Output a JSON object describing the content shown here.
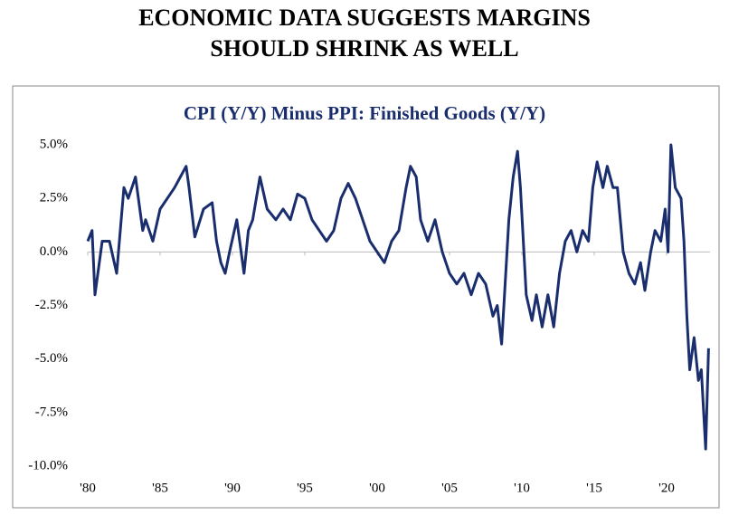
{
  "heading": [
    "ECONOMIC DATA SUGGESTS MARGINS",
    "SHOULD SHRINK AS WELL"
  ],
  "chart_data": {
    "type": "line",
    "title": "CPI (Y/Y) Minus PPI: Finished Goods (Y/Y)",
    "color": "#1a2e6e",
    "x": [
      1980,
      1980.3,
      1980.5,
      1981,
      1981.5,
      1982,
      1982.5,
      1982.8,
      1983.3,
      1983.8,
      1984,
      1984.5,
      1985,
      1985.5,
      1986,
      1986.4,
      1986.8,
      1987,
      1987.4,
      1988,
      1988.6,
      1988.9,
      1989.2,
      1989.5,
      1989.8,
      1990.3,
      1990.5,
      1990.8,
      1991.1,
      1991.4,
      1991.9,
      1992.4,
      1993,
      1993.5,
      1994,
      1994.5,
      1995,
      1995.5,
      1996,
      1996.5,
      1997,
      1997.5,
      1998,
      1998.5,
      1999,
      1999.5,
      2000,
      2000.5,
      2001,
      2001.5,
      2002,
      2002.3,
      2002.7,
      2003,
      2003.5,
      2004,
      2004.5,
      2005,
      2005.5,
      2006,
      2006.5,
      2007,
      2007.5,
      2008,
      2008.3,
      2008.6,
      2008.8,
      2009.1,
      2009.4,
      2009.7,
      2009.9,
      2010.3,
      2010.7,
      2011,
      2011.4,
      2011.8,
      2012.2,
      2012.6,
      2013,
      2013.4,
      2013.8,
      2014.2,
      2014.6,
      2014.9,
      2015.2,
      2015.6,
      2015.9,
      2016.3,
      2016.6,
      2017,
      2017.4,
      2017.8,
      2018.2,
      2018.5,
      2018.9,
      2019.2,
      2019.6,
      2019.9,
      2020.1,
      2020.3,
      2020.6,
      2021,
      2021.2,
      2021.4,
      2021.6,
      2021.9,
      2022.2,
      2022.4,
      2022.7,
      2022.9
    ],
    "values": [
      0.5,
      1.0,
      -2.0,
      0.5,
      0.5,
      -1.0,
      3.0,
      2.5,
      3.5,
      1.0,
      1.5,
      0.5,
      2.0,
      2.5,
      3.0,
      3.5,
      4.0,
      3.0,
      0.7,
      2.0,
      2.3,
      0.5,
      -0.5,
      -1.0,
      0.0,
      1.5,
      0.5,
      -1.0,
      1.0,
      1.5,
      3.5,
      2.0,
      1.5,
      2.0,
      1.5,
      2.7,
      2.5,
      1.5,
      1.0,
      0.5,
      1.0,
      2.5,
      3.2,
      2.5,
      1.5,
      0.5,
      0.0,
      -0.5,
      0.5,
      1.0,
      3.0,
      4.0,
      3.5,
      1.5,
      0.5,
      1.5,
      0.0,
      -1.0,
      -1.5,
      -1.0,
      -2.0,
      -1.0,
      -1.5,
      -3.0,
      -2.5,
      -4.3,
      -2.0,
      1.5,
      3.5,
      4.7,
      3.0,
      -2.0,
      -3.2,
      -2.0,
      -3.5,
      -2.0,
      -3.5,
      -1.0,
      0.5,
      1.0,
      0.0,
      1.0,
      0.5,
      3.0,
      4.2,
      3.0,
      4.0,
      3.0,
      3.0,
      0.0,
      -1.0,
      -1.5,
      -0.5,
      -1.8,
      0.0,
      1.0,
      0.5,
      2.0,
      0.0,
      5.0,
      3.0,
      2.5,
      0.5,
      -3.0,
      -5.5,
      -4.0,
      -6.0,
      -5.5,
      -9.2,
      -4.5
    ],
    "xlim": [
      1980,
      2023
    ],
    "xticks": [
      {
        "value": 1980,
        "label": "'80"
      },
      {
        "value": 1985,
        "label": "'85"
      },
      {
        "value": 1990,
        "label": "'90"
      },
      {
        "value": 1995,
        "label": "'95"
      },
      {
        "value": 2000,
        "label": "'00"
      },
      {
        "value": 2005,
        "label": "'05"
      },
      {
        "value": 2010,
        "label": "'10"
      },
      {
        "value": 2015,
        "label": "'15"
      },
      {
        "value": 2020,
        "label": "'20"
      }
    ],
    "ylim": [
      -10,
      5
    ],
    "yticks": [
      {
        "value": 5,
        "label": "5.0%"
      },
      {
        "value": 2.5,
        "label": "2.5%"
      },
      {
        "value": 0,
        "label": "0.0%"
      },
      {
        "value": -2.5,
        "label": "-2.5%"
      },
      {
        "value": -5,
        "label": "-5.0%"
      },
      {
        "value": -7.5,
        "label": "-7.5%"
      },
      {
        "value": -10,
        "label": "-10.0%"
      }
    ],
    "grid": false
  }
}
